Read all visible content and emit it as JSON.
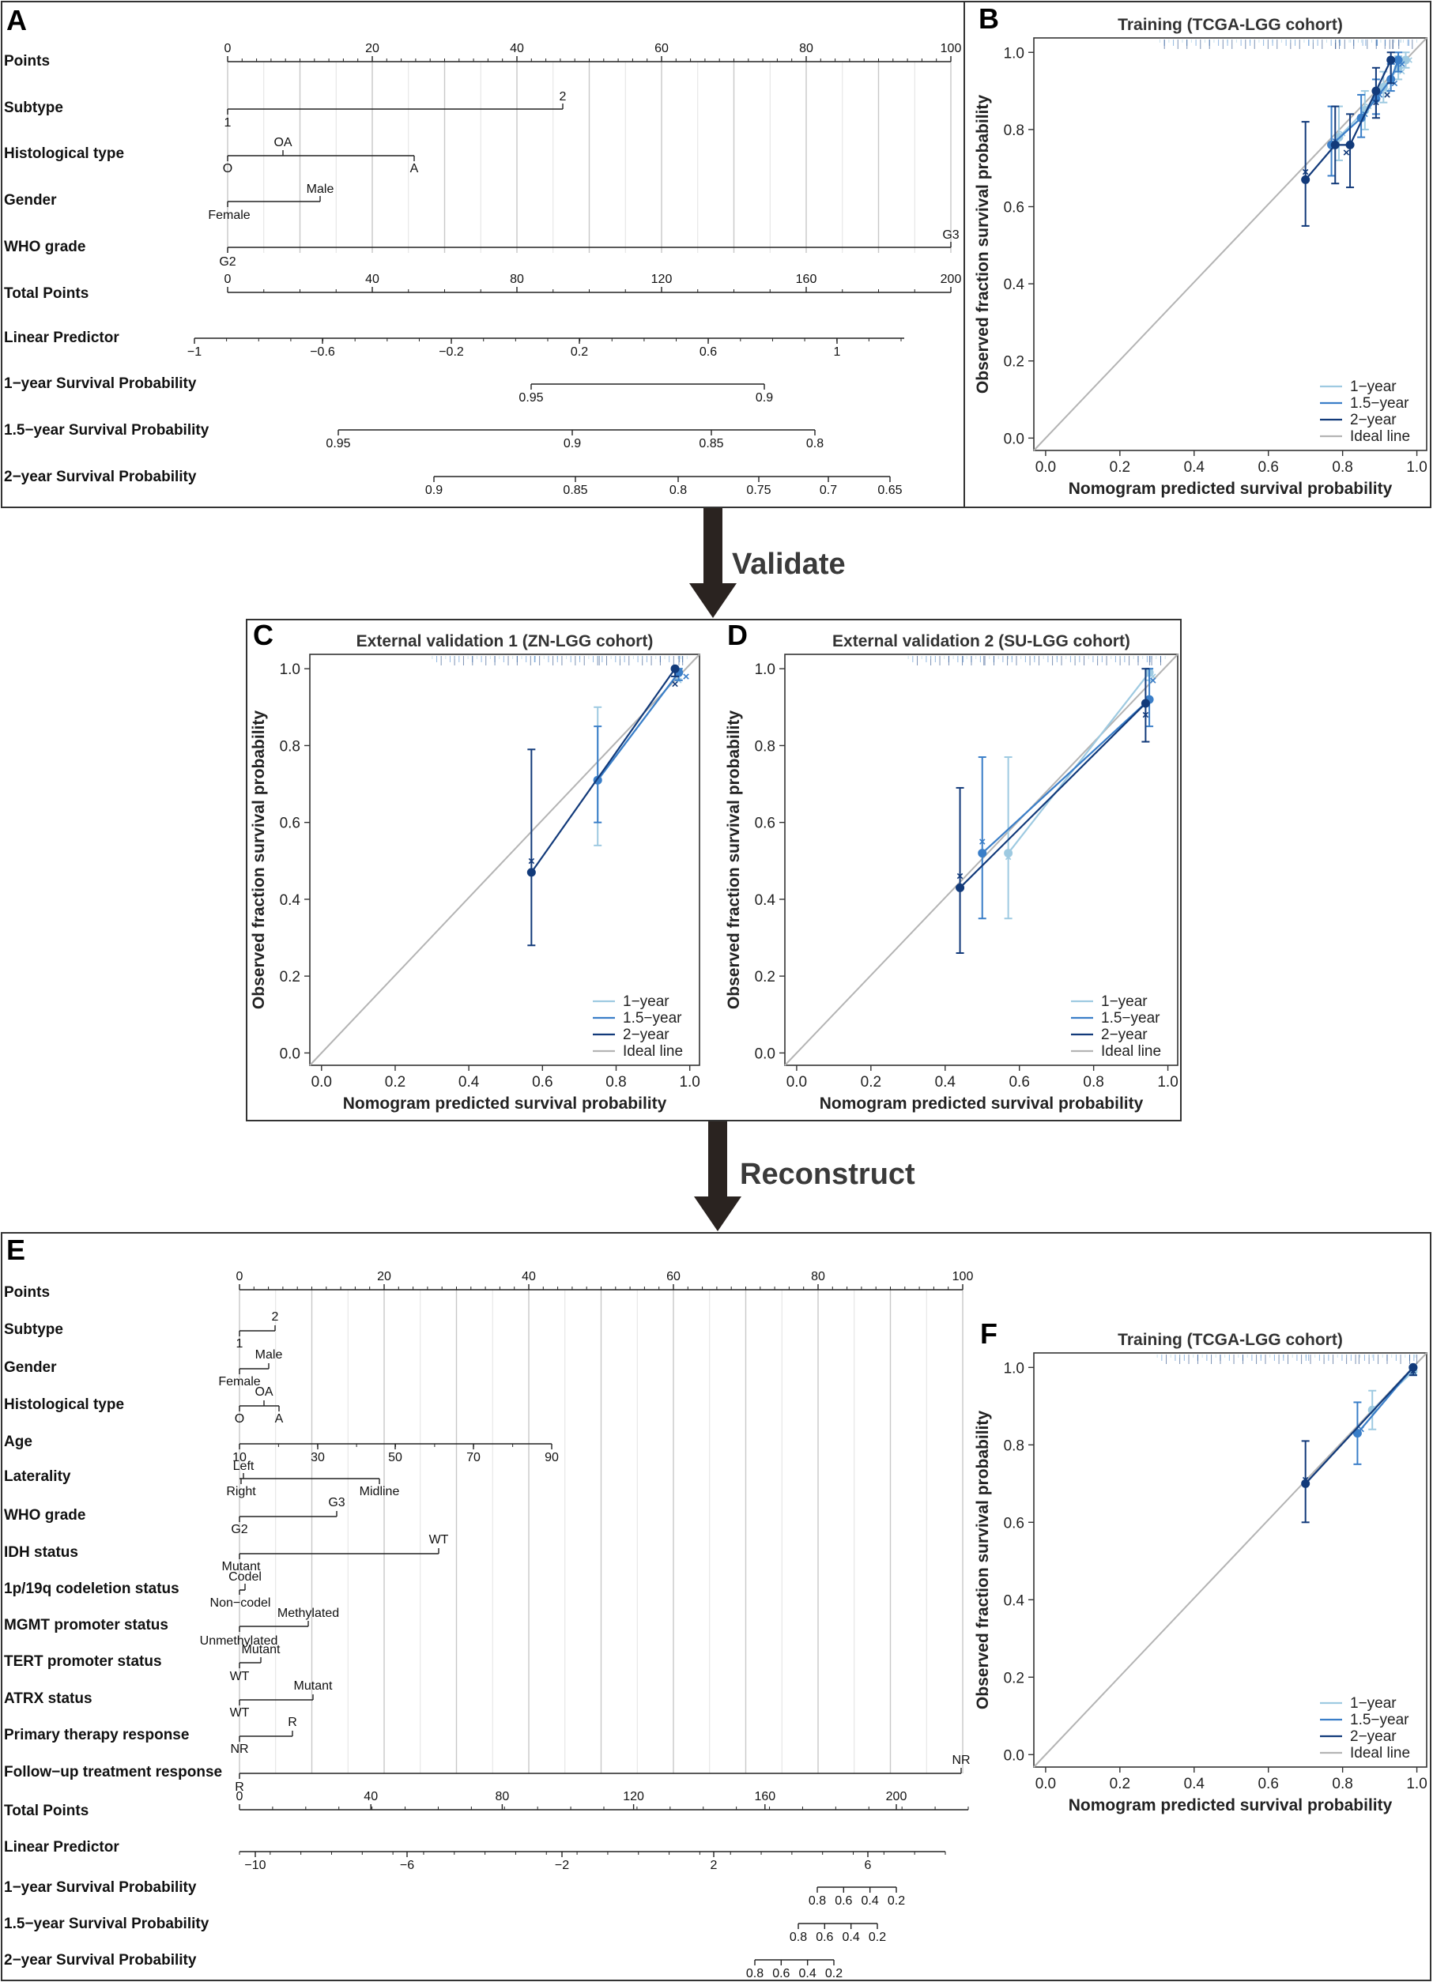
{
  "figure": {
    "arrow_labels": [
      "Validate",
      "Reconstruct"
    ],
    "colors": {
      "one_year": "#9ecae1",
      "one_five_year": "#3a7ec8",
      "two_year": "#123a7a",
      "ideal": "#b4b4b4",
      "frame": "#333333",
      "arrow": "#2a2320"
    }
  },
  "nomogram_A": {
    "panel": "A",
    "points_ticks": [
      "0",
      "20",
      "40",
      "60",
      "80",
      "100"
    ],
    "total_ticks": [
      "0",
      "40",
      "80",
      "120",
      "160",
      "200"
    ],
    "linear_predictor_ticks": [
      "−1",
      "−0.6",
      "−0.2",
      "0.2",
      "0.6",
      "1"
    ],
    "variables": [
      {
        "name": "Points"
      },
      {
        "name": "Subtype",
        "levels": [
          "1",
          "2"
        ]
      },
      {
        "name": "Histological type",
        "levels": [
          "O",
          "OA",
          "A"
        ]
      },
      {
        "name": "Gender",
        "levels": [
          "Female",
          "Male"
        ]
      },
      {
        "name": "WHO grade",
        "levels": [
          "G2",
          "G3"
        ]
      },
      {
        "name": "Total Points"
      },
      {
        "name": "Linear Predictor"
      },
      {
        "name": "1−year Survival Probability",
        "ticks": [
          "0.95",
          "0.9"
        ]
      },
      {
        "name": "1.5−year Survival Probability",
        "ticks": [
          "0.95",
          "0.9",
          "0.85",
          "0.8"
        ]
      },
      {
        "name": "2−year Survival Probability",
        "ticks": [
          "0.9",
          "0.85",
          "0.8",
          "0.75",
          "0.7",
          "0.65"
        ]
      }
    ]
  },
  "nomogram_E": {
    "panel": "E",
    "points_ticks": [
      "0",
      "20",
      "40",
      "60",
      "80",
      "100"
    ],
    "total_ticks": [
      "0",
      "40",
      "80",
      "120",
      "160",
      "200"
    ],
    "linear_predictor_ticks": [
      "−10",
      "−6",
      "−2",
      "2",
      "6"
    ],
    "variables": [
      {
        "name": "Points"
      },
      {
        "name": "Subtype",
        "levels": [
          "1",
          "2"
        ]
      },
      {
        "name": "Gender",
        "levels": [
          "Female",
          "Male"
        ]
      },
      {
        "name": "Histological type",
        "levels": [
          "O",
          "OA",
          "A"
        ]
      },
      {
        "name": "Age",
        "ticks": [
          "10",
          "30",
          "50",
          "70",
          "90"
        ]
      },
      {
        "name": "Laterality",
        "levels": [
          "Left",
          "Right",
          "Midline"
        ]
      },
      {
        "name": "WHO grade",
        "levels": [
          "G2",
          "G3"
        ]
      },
      {
        "name": "IDH status",
        "levels": [
          "Mutant",
          "WT"
        ]
      },
      {
        "name": "1p/19q codeletion status",
        "levels": [
          "Codel",
          "Non−codel"
        ]
      },
      {
        "name": "MGMT promoter status",
        "levels": [
          "Unmethylated",
          "Methylated"
        ]
      },
      {
        "name": "TERT promoter status",
        "levels": [
          "WT",
          "Mutant"
        ]
      },
      {
        "name": "ATRX status",
        "levels": [
          "WT",
          "Mutant"
        ]
      },
      {
        "name": "Primary therapy response",
        "levels": [
          "NR",
          "R"
        ]
      },
      {
        "name": "Follow−up treatment response",
        "levels": [
          "R",
          "NR"
        ]
      },
      {
        "name": "Total Points"
      },
      {
        "name": "Linear Predictor"
      },
      {
        "name": "1−year Survival Probability",
        "ticks": [
          "0.8",
          "0.6",
          "0.4",
          "0.2"
        ]
      },
      {
        "name": "1.5−year Survival Probability",
        "ticks": [
          "0.8",
          "0.6",
          "0.4",
          "0.2"
        ]
      },
      {
        "name": "2−year Survival Probability",
        "ticks": [
          "0.8",
          "0.6",
          "0.4",
          "0.2"
        ]
      }
    ]
  },
  "chart_data": [
    {
      "panel": "B",
      "type": "scatter",
      "title": "Training (TCGA-LGG cohort)",
      "xlabel": "Nomogram predicted survival probability",
      "ylabel": "Observed fraction survival probability",
      "xlim": [
        0,
        1
      ],
      "ylim": [
        0,
        1
      ],
      "ticks": [
        "0.0",
        "0.2",
        "0.4",
        "0.6",
        "0.8",
        "1.0"
      ],
      "legend": [
        "1−year",
        "1.5−year",
        "2−year",
        "Ideal line"
      ],
      "legend_position": "bottom-right",
      "series": [
        {
          "name": "1−year",
          "x": [
            0.79,
            0.86,
            0.91,
            0.95,
            0.97
          ],
          "y": [
            0.78,
            0.85,
            0.91,
            0.96,
            0.98
          ],
          "lo": [
            0.72,
            0.8,
            0.87,
            0.93,
            0.96
          ],
          "hi": [
            0.86,
            0.9,
            0.95,
            0.99,
            1.0
          ],
          "x_marks": [
            0.8,
            0.87,
            0.92,
            0.96,
            0.98
          ],
          "y_marks": [
            0.79,
            0.86,
            0.9,
            0.95,
            0.98
          ]
        },
        {
          "name": "1.5−year",
          "x": [
            0.77,
            0.85,
            0.89,
            0.93,
            0.95
          ],
          "y": [
            0.76,
            0.83,
            0.88,
            0.93,
            0.98
          ],
          "lo": [
            0.68,
            0.78,
            0.84,
            0.9,
            0.95
          ],
          "hi": [
            0.86,
            0.89,
            0.93,
            0.97,
            1.0
          ],
          "x_marks": [
            0.78,
            0.86,
            0.9,
            0.94,
            0.96
          ],
          "y_marks": [
            0.77,
            0.84,
            0.89,
            0.92,
            0.97
          ]
        },
        {
          "name": "2−year",
          "x": [
            0.7,
            0.78,
            0.82,
            0.89,
            0.93
          ],
          "y": [
            0.67,
            0.76,
            0.76,
            0.9,
            0.98
          ],
          "lo": [
            0.55,
            0.66,
            0.65,
            0.83,
            0.92
          ],
          "hi": [
            0.82,
            0.86,
            0.84,
            0.96,
            1.0
          ],
          "x_marks": [
            0.7,
            0.81,
            0.89,
            0.92
          ],
          "y_marks": [
            0.69,
            0.74,
            0.87,
            0.89
          ]
        }
      ]
    },
    {
      "panel": "C",
      "type": "scatter",
      "title": "External validation 1 (ZN-LGG cohort)",
      "xlabel": "Nomogram predicted survival probability",
      "ylabel": "Observed fraction survival probability",
      "xlim": [
        0,
        1
      ],
      "ylim": [
        0,
        1
      ],
      "ticks": [
        "0.0",
        "0.2",
        "0.4",
        "0.6",
        "0.8",
        "1.0"
      ],
      "legend": [
        "1−year",
        "1.5−year",
        "2−year",
        "Ideal line"
      ],
      "legend_position": "bottom-right",
      "series": [
        {
          "name": "1−year",
          "x": [
            0.75,
            0.97
          ],
          "y": [
            0.71,
            0.99
          ],
          "lo": [
            0.54,
            0.97
          ],
          "hi": [
            0.9,
            1.0
          ],
          "x_marks": [
            0.75,
            0.97
          ],
          "y_marks": [
            0.71,
            0.97
          ]
        },
        {
          "name": "1.5−year",
          "x": [
            0.75,
            0.97
          ],
          "y": [
            0.71,
            0.99
          ],
          "lo": [
            0.6,
            0.97
          ],
          "hi": [
            0.85,
            1.0
          ],
          "x_marks": [
            0.99
          ],
          "y_marks": [
            0.98
          ]
        },
        {
          "name": "2−year",
          "x": [
            0.57,
            0.96
          ],
          "y": [
            0.47,
            1.0
          ],
          "lo": [
            0.28,
            0.98
          ],
          "hi": [
            0.79,
            1.0
          ],
          "x_marks": [
            0.57,
            0.96
          ],
          "y_marks": [
            0.5,
            0.96
          ]
        }
      ]
    },
    {
      "panel": "D",
      "type": "scatter",
      "title": "External validation 2 (SU-LGG cohort)",
      "xlabel": "Nomogram predicted survival probability",
      "ylabel": "Observed fraction survival probability",
      "xlim": [
        0,
        1
      ],
      "ylim": [
        0,
        1
      ],
      "ticks": [
        "0.0",
        "0.2",
        "0.4",
        "0.6",
        "0.8",
        "1.0"
      ],
      "legend": [
        "1−year",
        "1.5−year",
        "2−year",
        "Ideal line"
      ],
      "legend_position": "bottom-right",
      "series": [
        {
          "name": "1−year",
          "x": [
            0.57,
            0.95
          ],
          "y": [
            0.52,
            0.99
          ],
          "lo": [
            0.35,
            0.97
          ],
          "hi": [
            0.77,
            1.0
          ],
          "x_marks": [
            0.57,
            0.96
          ],
          "y_marks": [
            0.51,
            0.98
          ]
        },
        {
          "name": "1.5−year",
          "x": [
            0.5,
            0.95
          ],
          "y": [
            0.52,
            0.92
          ],
          "lo": [
            0.35,
            0.85
          ],
          "hi": [
            0.77,
            1.0
          ],
          "x_marks": [
            0.5,
            0.96
          ],
          "y_marks": [
            0.55,
            0.97
          ]
        },
        {
          "name": "2−year",
          "x": [
            0.44,
            0.94
          ],
          "y": [
            0.43,
            0.91
          ],
          "lo": [
            0.26,
            0.81
          ],
          "hi": [
            0.69,
            1.0
          ],
          "x_marks": [
            0.44,
            0.94
          ],
          "y_marks": [
            0.46,
            0.88
          ]
        }
      ]
    },
    {
      "panel": "F",
      "type": "scatter",
      "title": "Training (TCGA-LGG cohort)",
      "xlabel": "Nomogram predicted survival probability",
      "ylabel": "Observed fraction survival probability",
      "xlim": [
        0,
        1
      ],
      "ylim": [
        0,
        1
      ],
      "ticks": [
        "0.0",
        "0.2",
        "0.4",
        "0.6",
        "0.8",
        "1.0"
      ],
      "legend": [
        "1−year",
        "1.5−year",
        "2−year",
        "Ideal line"
      ],
      "legend_position": "bottom-right",
      "series": [
        {
          "name": "1−year",
          "x": [
            0.88,
            0.99
          ],
          "y": [
            0.89,
            0.99
          ],
          "lo": [
            0.84,
            0.98
          ],
          "hi": [
            0.94,
            1.0
          ],
          "x_marks": [
            0.88,
            0.99
          ],
          "y_marks": [
            0.89,
            0.99
          ]
        },
        {
          "name": "1.5−year",
          "x": [
            0.84,
            0.99
          ],
          "y": [
            0.83,
            1.0
          ],
          "lo": [
            0.75,
            0.98
          ],
          "hi": [
            0.91,
            1.0
          ],
          "x_marks": [
            0.85,
            0.99
          ],
          "y_marks": [
            0.84,
            0.99
          ]
        },
        {
          "name": "2−year",
          "x": [
            0.7,
            0.99
          ],
          "y": [
            0.7,
            1.0
          ],
          "lo": [
            0.6,
            0.98
          ],
          "hi": [
            0.81,
            1.0
          ],
          "x_marks": [
            0.7,
            0.99
          ],
          "y_marks": [
            0.71,
            0.99
          ]
        }
      ]
    }
  ]
}
